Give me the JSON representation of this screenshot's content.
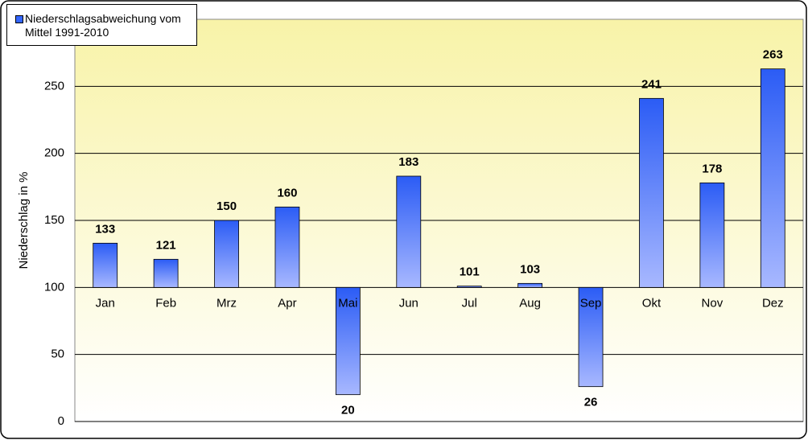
{
  "chart_data": {
    "type": "bar",
    "y_label": "Niederschlag in %",
    "categories": [
      "Jan",
      "Feb",
      "Mrz",
      "Apr",
      "Mai",
      "Jun",
      "Jul",
      "Aug",
      "Sep",
      "Okt",
      "Nov",
      "Dez"
    ],
    "series": [
      {
        "name": "Niederschlagsabweichung vom Mittel 1991-2010",
        "color": "#3366ff",
        "values": [
          133,
          121,
          150,
          160,
          20,
          183,
          101,
          103,
          26,
          241,
          178,
          263
        ]
      }
    ],
    "bar_base": 100,
    "ylim": [
      0,
      300
    ],
    "yticks": [
      0,
      50,
      100,
      150,
      200,
      250
    ],
    "grid": true,
    "legend": "top-left"
  }
}
